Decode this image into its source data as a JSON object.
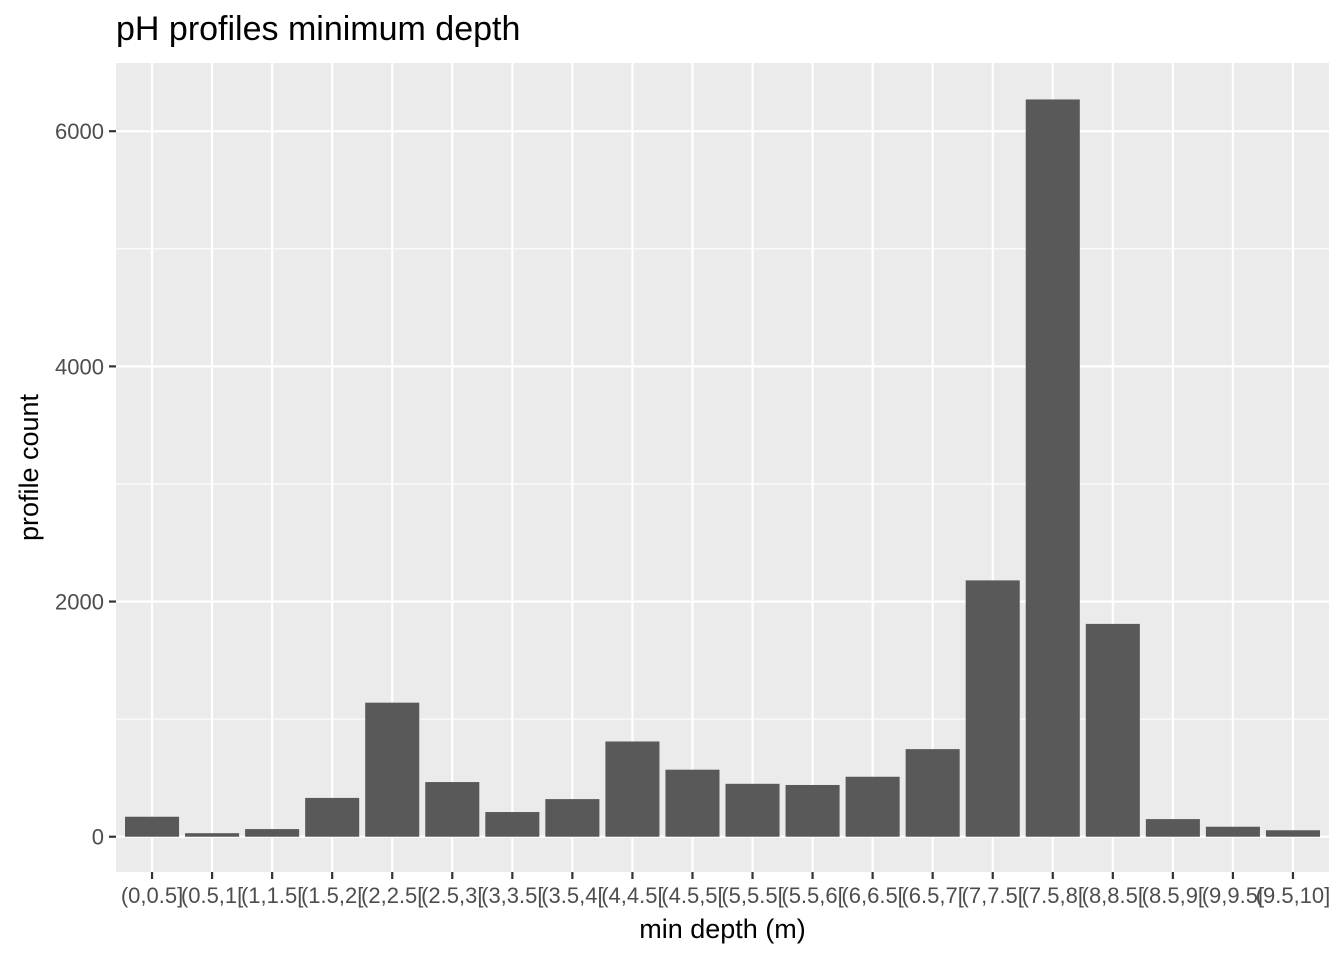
{
  "chart_data": {
    "type": "bar",
    "title": "pH profiles minimum depth",
    "xlabel": "min depth (m)",
    "ylabel": "profile count",
    "categories": [
      "(0,0.5]",
      "(0.5,1]",
      "(1,1.5]",
      "(1.5,2]",
      "(2,2.5]",
      "(2.5,3]",
      "(3,3.5]",
      "(3.5,4]",
      "(4,4.5]",
      "(4.5,5]",
      "(5,5.5]",
      "(5.5,6]",
      "(6,6.5]",
      "(6.5,7]",
      "(7,7.5]",
      "(7.5,8]",
      "(8,8.5]",
      "(8.5,9]",
      "(9,9.5]",
      "(9.5,10]"
    ],
    "tick_labels_shown": [
      "(0,0.5]",
      "(0.5,1[",
      "(1,1.5[",
      "(1.5,2[",
      "(2,2.5[",
      "(2.5,3[",
      "(3,3.5[",
      "(3.5,4[",
      "(4,4.5[",
      "(4.5,5[",
      "(5,5.5[",
      "(5.5,6[",
      "(6,6.5[",
      "(6.5,7[",
      "(7,7.5[",
      "(7.5,8[",
      "(8,8.5[",
      "(8.5,9[",
      "(9,9.5[",
      "(9.5,10]"
    ],
    "values": [
      170,
      30,
      65,
      330,
      1140,
      465,
      210,
      320,
      810,
      570,
      450,
      440,
      510,
      745,
      2180,
      6270,
      1810,
      150,
      85,
      55
    ],
    "yticks": [
      0,
      2000,
      4000,
      6000
    ],
    "ylim": [
      -300,
      6580
    ],
    "grid": true,
    "colors": {
      "bar": "#595959",
      "panel": "#ebebeb",
      "grid": "#ffffff",
      "tick_text": "#4d4d4d",
      "axis_text": "#000000"
    }
  }
}
